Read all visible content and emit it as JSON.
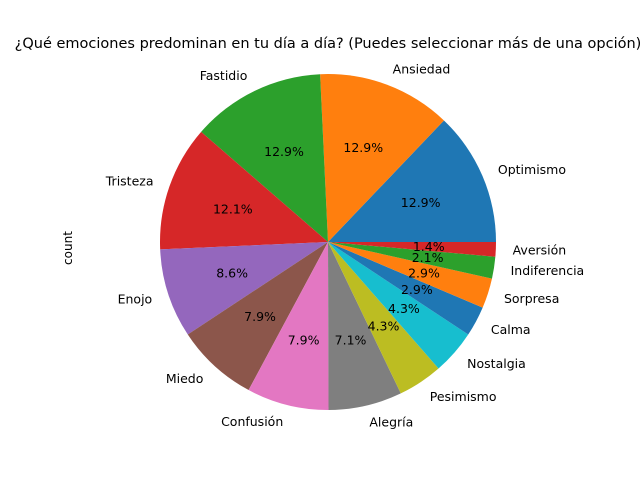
{
  "chart_data": {
    "type": "pie",
    "title": "¿Qué emociones predominan en tu día a día? (Puedes seleccionar más de una opción)",
    "ylabel": "count",
    "start_angle_deg": 0,
    "direction": "counterclockwise",
    "legend": "none",
    "slices": [
      {
        "label": "Optimismo",
        "value": 12.9,
        "pct_label": "12.9%",
        "color": "#1f77b4"
      },
      {
        "label": "Ansiedad",
        "value": 12.9,
        "pct_label": "12.9%",
        "color": "#ff7f0e"
      },
      {
        "label": "Fastidio",
        "value": 12.9,
        "pct_label": "12.9%",
        "color": "#2ca02c"
      },
      {
        "label": "Tristeza",
        "value": 12.1,
        "pct_label": "12.1%",
        "color": "#d62728"
      },
      {
        "label": "Enojo",
        "value": 8.6,
        "pct_label": "8.6%",
        "color": "#9467bd"
      },
      {
        "label": "Miedo",
        "value": 7.9,
        "pct_label": "7.9%",
        "color": "#8c564b"
      },
      {
        "label": "Confusión",
        "value": 7.9,
        "pct_label": "7.9%",
        "color": "#e377c2"
      },
      {
        "label": "Alegría",
        "value": 7.1,
        "pct_label": "7.1%",
        "color": "#7f7f7f"
      },
      {
        "label": "Pesimismo",
        "value": 4.3,
        "pct_label": "4.3%",
        "color": "#bcbd22"
      },
      {
        "label": "Nostalgia",
        "value": 4.3,
        "pct_label": "4.3%",
        "color": "#17becf"
      },
      {
        "label": "Calma",
        "value": 2.9,
        "pct_label": "2.9%",
        "color": "#1f77b4"
      },
      {
        "label": "Sorpresa",
        "value": 2.9,
        "pct_label": "2.9%",
        "color": "#ff7f0e"
      },
      {
        "label": "Indiferencia",
        "value": 2.1,
        "pct_label": "2.1%",
        "color": "#2ca02c"
      },
      {
        "label": "Aversión",
        "value": 1.4,
        "pct_label": "1.4%",
        "color": "#d62728"
      }
    ]
  }
}
